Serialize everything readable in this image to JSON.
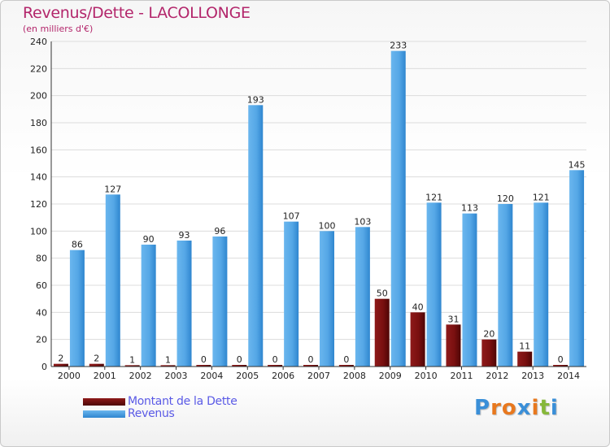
{
  "header": {
    "title": "Revenus/Dette - LACOLLONGE",
    "subtitle": "(en milliers d'€)"
  },
  "colors": {
    "debt": "#7a1010",
    "revenue": "#55a7e6",
    "title": "#b3266b",
    "legend_text": "#5a5ae6"
  },
  "legend": {
    "debt_label": "Montant de la Dette",
    "revenue_label": "Revenus"
  },
  "logo": {
    "text": "Proxiti"
  },
  "chart_data": {
    "type": "bar",
    "title": "Revenus/Dette - LACOLLONGE",
    "subtitle": "(en milliers d'€)",
    "categories": [
      "2000",
      "2001",
      "2002",
      "2003",
      "2004",
      "2005",
      "2006",
      "2007",
      "2008",
      "2009",
      "2010",
      "2011",
      "2012",
      "2013",
      "2014"
    ],
    "series": [
      {
        "name": "Montant de la Dette",
        "values": [
          2,
          2,
          1,
          1,
          0,
          0,
          0,
          0,
          0,
          50,
          40,
          31,
          20,
          11,
          0
        ]
      },
      {
        "name": "Revenus",
        "values": [
          86,
          127,
          90,
          93,
          96,
          193,
          107,
          100,
          103,
          233,
          121,
          113,
          120,
          121,
          145
        ]
      }
    ],
    "ylim": [
      0,
      240
    ],
    "yticks": [
      0,
      20,
      40,
      60,
      80,
      100,
      120,
      140,
      160,
      180,
      200,
      220,
      240
    ],
    "grid": true,
    "legend_position": "bottom-left"
  }
}
